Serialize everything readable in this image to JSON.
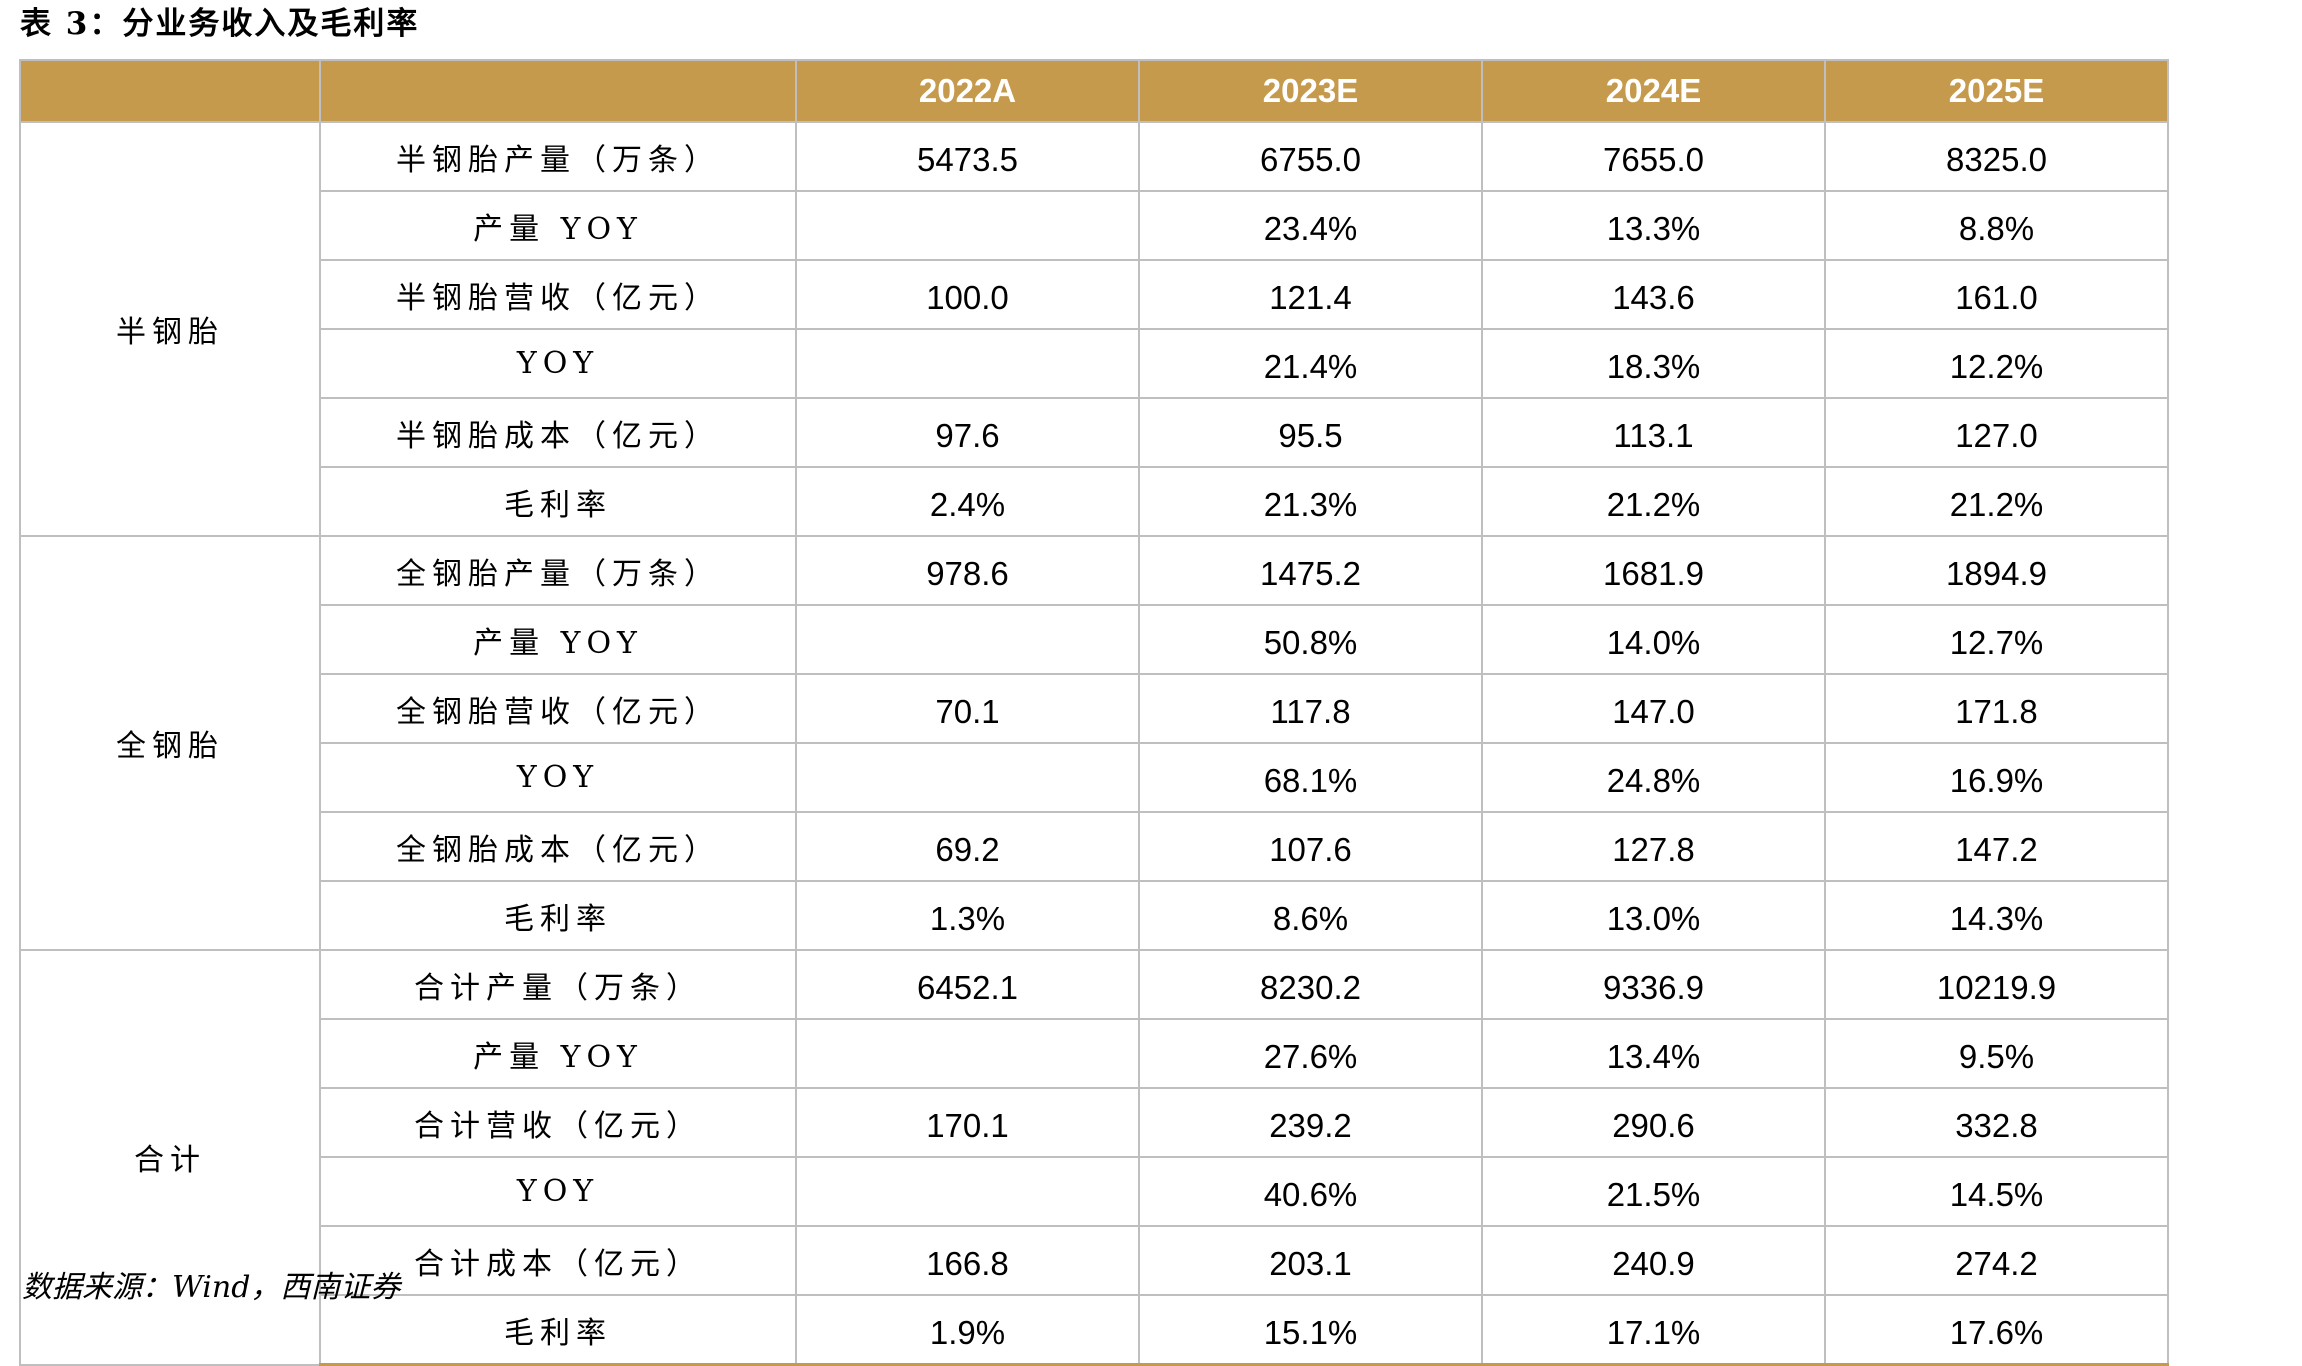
{
  "title": "表 3：分业务收入及毛利率",
  "header": {
    "group_blank": "",
    "item_blank": "",
    "years": [
      "2022A",
      "2023E",
      "2024E",
      "2025E"
    ]
  },
  "groups": [
    {
      "name": "半钢胎",
      "rows": [
        {
          "label": "半钢胎产量（万条）",
          "values": [
            "5473.5",
            "6755.0",
            "7655.0",
            "8325.0"
          ]
        },
        {
          "label": "产量 YOY",
          "values": [
            "",
            "23.4%",
            "13.3%",
            "8.8%"
          ]
        },
        {
          "label": "半钢胎营收（亿元）",
          "values": [
            "100.0",
            "121.4",
            "143.6",
            "161.0"
          ]
        },
        {
          "label": "YOY",
          "values": [
            "",
            "21.4%",
            "18.3%",
            "12.2%"
          ]
        },
        {
          "label": "半钢胎成本（亿元）",
          "values": [
            "97.6",
            "95.5",
            "113.1",
            "127.0"
          ]
        },
        {
          "label": "毛利率",
          "values": [
            "2.4%",
            "21.3%",
            "21.2%",
            "21.2%"
          ]
        }
      ]
    },
    {
      "name": "全钢胎",
      "rows": [
        {
          "label": "全钢胎产量（万条）",
          "values": [
            "978.6",
            "1475.2",
            "1681.9",
            "1894.9"
          ]
        },
        {
          "label": "产量 YOY",
          "values": [
            "",
            "50.8%",
            "14.0%",
            "12.7%"
          ]
        },
        {
          "label": "全钢胎营收（亿元）",
          "values": [
            "70.1",
            "117.8",
            "147.0",
            "171.8"
          ]
        },
        {
          "label": "YOY",
          "values": [
            "",
            "68.1%",
            "24.8%",
            "16.9%"
          ]
        },
        {
          "label": "全钢胎成本（亿元）",
          "values": [
            "69.2",
            "107.6",
            "127.8",
            "147.2"
          ]
        },
        {
          "label": "毛利率",
          "values": [
            "1.3%",
            "8.6%",
            "13.0%",
            "14.3%"
          ]
        }
      ]
    },
    {
      "name": "合计",
      "rows": [
        {
          "label": "合计产量（万条）",
          "values": [
            "6452.1",
            "8230.2",
            "9336.9",
            "10219.9"
          ]
        },
        {
          "label": "产量 YOY",
          "values": [
            "",
            "27.6%",
            "13.4%",
            "9.5%"
          ]
        },
        {
          "label": "合计营收（亿元）",
          "values": [
            "170.1",
            "239.2",
            "290.6",
            "332.8"
          ]
        },
        {
          "label": "YOY",
          "values": [
            "",
            "40.6%",
            "21.5%",
            "14.5%"
          ]
        },
        {
          "label": "合计成本（亿元）",
          "values": [
            "166.8",
            "203.1",
            "240.9",
            "274.2"
          ]
        },
        {
          "label": "毛利率",
          "values": [
            "1.9%",
            "15.1%",
            "17.1%",
            "17.6%"
          ]
        }
      ]
    }
  ],
  "source": "数据来源：Wind，西南证券",
  "colors": {
    "header_bg": "#c69a4c",
    "header_text": "#ffffff",
    "grid": "#bfbfbf"
  }
}
